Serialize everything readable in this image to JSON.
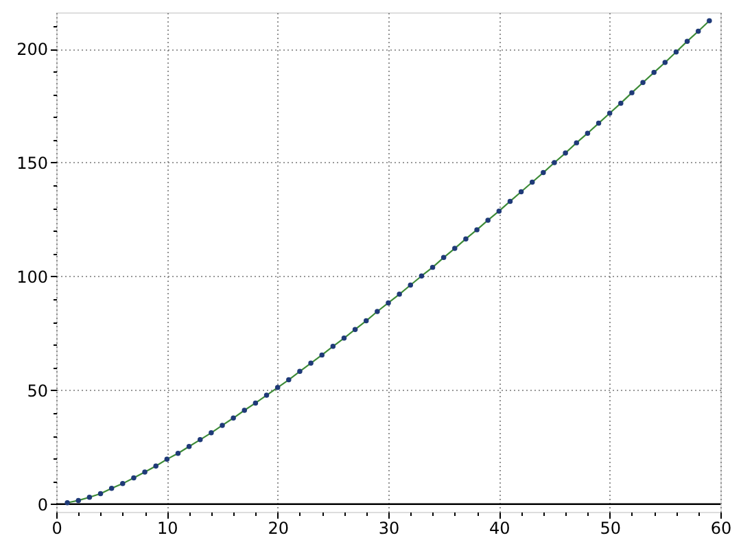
{
  "chart_data": {
    "type": "line",
    "x": [
      1,
      2,
      3,
      4,
      5,
      6,
      7,
      8,
      9,
      10,
      11,
      12,
      13,
      14,
      15,
      16,
      17,
      18,
      19,
      20,
      21,
      22,
      23,
      24,
      25,
      26,
      27,
      28,
      29,
      30,
      31,
      32,
      33,
      34,
      35,
      36,
      37,
      38,
      39,
      40,
      41,
      42,
      43,
      44,
      45,
      46,
      47,
      48,
      49,
      50,
      51,
      52,
      53,
      54,
      55,
      56,
      57,
      58,
      59
    ],
    "series": [
      {
        "color": "#3d8b37",
        "marker": "none",
        "values": [
          0.6,
          1.6,
          3.0,
          4.6,
          6.9,
          9.0,
          11.5,
          14.1,
          16.7,
          19.7,
          22.3,
          25.3,
          28.3,
          31.3,
          34.6,
          37.8,
          41.2,
          44.4,
          47.8,
          51.2,
          54.6,
          58.3,
          61.9,
          65.5,
          69.3,
          72.9,
          76.7,
          80.5,
          84.6,
          88.4,
          92.2,
          96.2,
          100.2,
          104.0,
          108.3,
          112.3,
          116.5,
          120.5,
          124.7,
          128.7,
          133.0,
          137.2,
          141.4,
          145.6,
          150.0,
          154.2,
          158.7,
          162.9,
          167.3,
          171.7,
          176.1,
          180.7,
          185.2,
          189.6,
          194.0,
          198.6,
          203.3,
          207.7,
          212.3
        ]
      },
      {
        "type": "scatter",
        "color": "#1f3a78",
        "marker": "circle",
        "values": [
          0.6,
          1.6,
          3.0,
          4.6,
          6.9,
          9.0,
          11.5,
          14.1,
          16.7,
          19.7,
          22.3,
          25.3,
          28.3,
          31.3,
          34.6,
          37.8,
          41.2,
          44.4,
          47.8,
          51.2,
          54.6,
          58.3,
          61.9,
          65.5,
          69.3,
          72.9,
          76.7,
          80.5,
          84.6,
          88.4,
          92.2,
          96.2,
          100.2,
          104.0,
          108.3,
          112.3,
          116.5,
          120.5,
          124.7,
          128.7,
          133.0,
          137.2,
          141.4,
          145.6,
          150.0,
          154.2,
          158.7,
          162.9,
          167.3,
          171.7,
          176.1,
          180.7,
          185.2,
          189.6,
          194.0,
          198.6,
          203.3,
          207.7,
          212.3
        ]
      }
    ],
    "xlim": [
      0,
      60
    ],
    "ylim": [
      -3.4,
      216
    ],
    "xticks": [
      0,
      {
        "value": 2,
        "label": null
      },
      {
        "value": 4,
        "label": null
      },
      {
        "value": 6,
        "label": null
      },
      {
        "value": 8,
        "label": null
      },
      10,
      {
        "value": 12,
        "label": null
      },
      {
        "value": 14,
        "label": null
      },
      {
        "value": 16,
        "label": null
      },
      {
        "value": 18,
        "label": null
      },
      20,
      {
        "value": 22,
        "label": null
      },
      {
        "value": 24,
        "label": null
      },
      {
        "value": 26,
        "label": null
      },
      {
        "value": 28,
        "label": null
      },
      30,
      {
        "value": 32,
        "label": null
      },
      {
        "value": 34,
        "label": null
      },
      {
        "value": 36,
        "label": null
      },
      {
        "value": 38,
        "label": null
      },
      40,
      {
        "value": 42,
        "label": null
      },
      {
        "value": 44,
        "label": null
      },
      {
        "value": 46,
        "label": null
      },
      {
        "value": 48,
        "label": null
      },
      50,
      {
        "value": 52,
        "label": null
      },
      {
        "value": 54,
        "label": null
      },
      {
        "value": 56,
        "label": null
      },
      {
        "value": 58,
        "label": null
      },
      60
    ],
    "yticks": [
      0,
      {
        "value": 10,
        "label": null
      },
      {
        "value": 20,
        "label": null
      },
      {
        "value": 30,
        "label": null
      },
      {
        "value": 40,
        "label": null
      },
      50,
      {
        "value": 60,
        "label": null
      },
      {
        "value": 70,
        "label": null
      },
      {
        "value": 80,
        "label": null
      },
      {
        "value": 90,
        "label": null
      },
      100,
      {
        "value": 110,
        "label": null
      },
      {
        "value": 120,
        "label": null
      },
      {
        "value": 130,
        "label": null
      },
      {
        "value": 140,
        "label": null
      },
      150,
      {
        "value": 160,
        "label": null
      },
      {
        "value": 170,
        "label": null
      },
      {
        "value": 180,
        "label": null
      },
      {
        "value": 190,
        "label": null
      },
      200,
      {
        "value": 210,
        "label": null
      }
    ],
    "grid": true,
    "line_style": "solid",
    "ref_lines": [
      {
        "axis": "y",
        "value": 0,
        "color": "#000000"
      }
    ]
  }
}
